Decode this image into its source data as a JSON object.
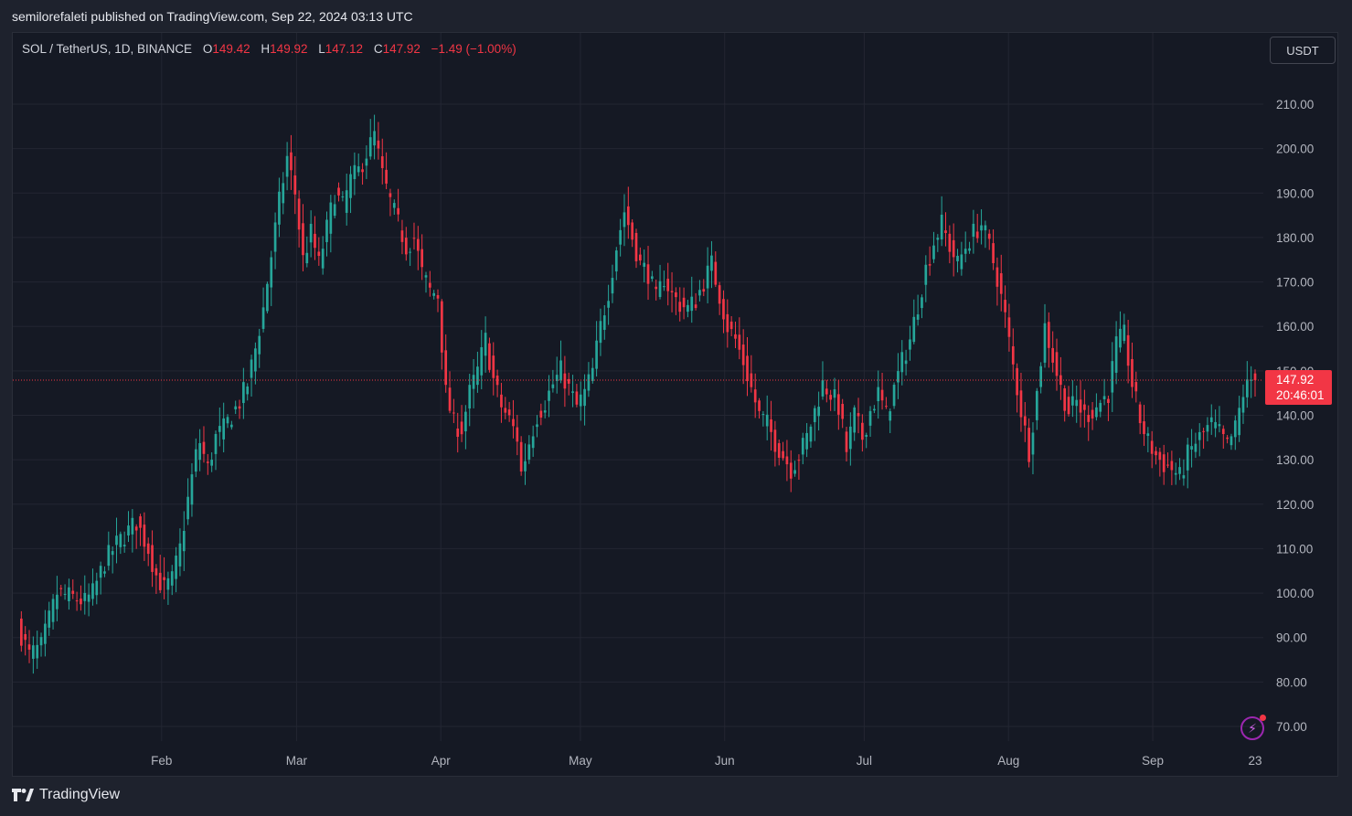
{
  "header": {
    "published_text": "semilorefaleti published on TradingView.com, Sep 22, 2024 03:13 UTC"
  },
  "legend": {
    "symbol": "SOL / TetherUS, 1D, BINANCE",
    "open_label": "O",
    "open": "149.42",
    "high_label": "H",
    "high": "149.92",
    "low_label": "L",
    "low": "147.12",
    "close_label": "C",
    "close": "147.92",
    "change": "−1.49 (−1.00%)"
  },
  "currency_button": "USDT",
  "price_tag": {
    "price": "147.92",
    "countdown": "20:46:01"
  },
  "footer": {
    "brand": "TradingView"
  },
  "colors": {
    "up": "#26a69a",
    "down": "#f23645",
    "background": "#151924",
    "grid": "#232632",
    "text": "#d1d4dc",
    "accent_purple": "#9c27b0"
  },
  "icons": [
    "flash-icon",
    "tradingview-logo-icon"
  ],
  "chart_data": {
    "type": "candlestick",
    "symbol": "SOL / TetherUS",
    "interval": "1D",
    "exchange": "BINANCE",
    "currency": "USDT",
    "y_ticks": [
      "210.00",
      "200.00",
      "190.00",
      "180.00",
      "170.00",
      "160.00",
      "150.00",
      "140.00",
      "130.00",
      "120.00",
      "110.00",
      "100.00",
      "90.00",
      "80.00",
      "70.00"
    ],
    "ylim": [
      67,
      221
    ],
    "x_ticks": [
      {
        "label": "Feb",
        "day": 31
      },
      {
        "label": "Mar",
        "day": 60
      },
      {
        "label": "Apr",
        "day": 91
      },
      {
        "label": "May",
        "day": 121
      },
      {
        "label": "Jun",
        "day": 152
      },
      {
        "label": "Jul",
        "day": 182
      },
      {
        "label": "Aug",
        "day": 213
      },
      {
        "label": "Sep",
        "day": 244
      },
      {
        "label": "23",
        "day": 266
      }
    ],
    "x_range_days": [
      0,
      272
    ],
    "first_candle_day": 0,
    "last_close": 147.92,
    "grid": true,
    "waypoints": [
      [
        0,
        93
      ],
      [
        3,
        86
      ],
      [
        6,
        88
      ],
      [
        10,
        100
      ],
      [
        14,
        99
      ],
      [
        17,
        98
      ],
      [
        19,
        100
      ],
      [
        22,
        107
      ],
      [
        25,
        111
      ],
      [
        28,
        114
      ],
      [
        30,
        116
      ],
      [
        33,
        110
      ],
      [
        35,
        104
      ],
      [
        37,
        101
      ],
      [
        39,
        103
      ],
      [
        41,
        110
      ],
      [
        43,
        121
      ],
      [
        45,
        131
      ],
      [
        46,
        134
      ],
      [
        48,
        128
      ],
      [
        50,
        135
      ],
      [
        52,
        137
      ],
      [
        54,
        140
      ],
      [
        56,
        143
      ],
      [
        58,
        147
      ],
      [
        60,
        155
      ],
      [
        62,
        164
      ],
      [
        64,
        176
      ],
      [
        66,
        188
      ],
      [
        68,
        198
      ],
      [
        70,
        190
      ],
      [
        72,
        175
      ],
      [
        74,
        181
      ],
      [
        76,
        174
      ],
      [
        78,
        182
      ],
      [
        80,
        190
      ],
      [
        82,
        187
      ],
      [
        84,
        193
      ],
      [
        86,
        195
      ],
      [
        88,
        199
      ],
      [
        90,
        203
      ],
      [
        92,
        194
      ],
      [
        94,
        188
      ],
      [
        96,
        183
      ],
      [
        98,
        178
      ],
      [
        100,
        180
      ],
      [
        102,
        172
      ],
      [
        104,
        168
      ],
      [
        106,
        167
      ],
      [
        108,
        145
      ],
      [
        110,
        138
      ],
      [
        112,
        137
      ],
      [
        114,
        145
      ],
      [
        116,
        150
      ],
      [
        118,
        157
      ],
      [
        120,
        148
      ],
      [
        122,
        142
      ],
      [
        124,
        139
      ],
      [
        126,
        135
      ],
      [
        127,
        127
      ],
      [
        129,
        134
      ],
      [
        131,
        140
      ],
      [
        133,
        143
      ],
      [
        135,
        147
      ],
      [
        137,
        150
      ],
      [
        139,
        146
      ],
      [
        141,
        142
      ],
      [
        143,
        145
      ],
      [
        145,
        150
      ],
      [
        147,
        160
      ],
      [
        149,
        168
      ],
      [
        151,
        178
      ],
      [
        153,
        186
      ],
      [
        155,
        180
      ],
      [
        157,
        174
      ],
      [
        159,
        172
      ],
      [
        161,
        166
      ],
      [
        163,
        171
      ],
      [
        165,
        167
      ],
      [
        167,
        165
      ],
      [
        169,
        164
      ],
      [
        171,
        166
      ],
      [
        173,
        170
      ],
      [
        175,
        174
      ],
      [
        177,
        167
      ],
      [
        179,
        160
      ],
      [
        181,
        157
      ],
      [
        183,
        152
      ],
      [
        185,
        146
      ],
      [
        187,
        140
      ],
      [
        189,
        138
      ],
      [
        191,
        134
      ],
      [
        193,
        131
      ],
      [
        195,
        128
      ],
      [
        197,
        131
      ],
      [
        199,
        135
      ],
      [
        201,
        141
      ],
      [
        203,
        147
      ],
      [
        205,
        145
      ],
      [
        207,
        142
      ],
      [
        209,
        132
      ],
      [
        211,
        140
      ],
      [
        213,
        135
      ],
      [
        215,
        141
      ],
      [
        217,
        145
      ],
      [
        219,
        140
      ],
      [
        221,
        146
      ],
      [
        223,
        152
      ],
      [
        225,
        157
      ],
      [
        227,
        165
      ],
      [
        229,
        173
      ],
      [
        231,
        179
      ],
      [
        233,
        183
      ],
      [
        235,
        178
      ],
      [
        237,
        174
      ],
      [
        239,
        178
      ],
      [
        241,
        181
      ],
      [
        243,
        183
      ],
      [
        245,
        178
      ],
      [
        247,
        171
      ],
      [
        249,
        162
      ],
      [
        251,
        151
      ],
      [
        253,
        141
      ],
      [
        255,
        132
      ],
      [
        257,
        145
      ],
      [
        259,
        160
      ],
      [
        261,
        153
      ],
      [
        263,
        146
      ],
      [
        265,
        141
      ],
      [
        267,
        143
      ],
      [
        269,
        140
      ],
      [
        271,
        141
      ],
      [
        273,
        143
      ],
      [
        275,
        145
      ],
      [
        277,
        156
      ],
      [
        279,
        158
      ],
      [
        281,
        147
      ],
      [
        283,
        139
      ],
      [
        285,
        134
      ],
      [
        287,
        131
      ],
      [
        289,
        129
      ],
      [
        291,
        128
      ],
      [
        293,
        126
      ],
      [
        295,
        131
      ],
      [
        297,
        134
      ],
      [
        299,
        136
      ],
      [
        301,
        138
      ],
      [
        303,
        136
      ],
      [
        305,
        133
      ],
      [
        307,
        137
      ],
      [
        309,
        145
      ],
      [
        311,
        148
      ],
      [
        312,
        147.92
      ]
    ]
  }
}
